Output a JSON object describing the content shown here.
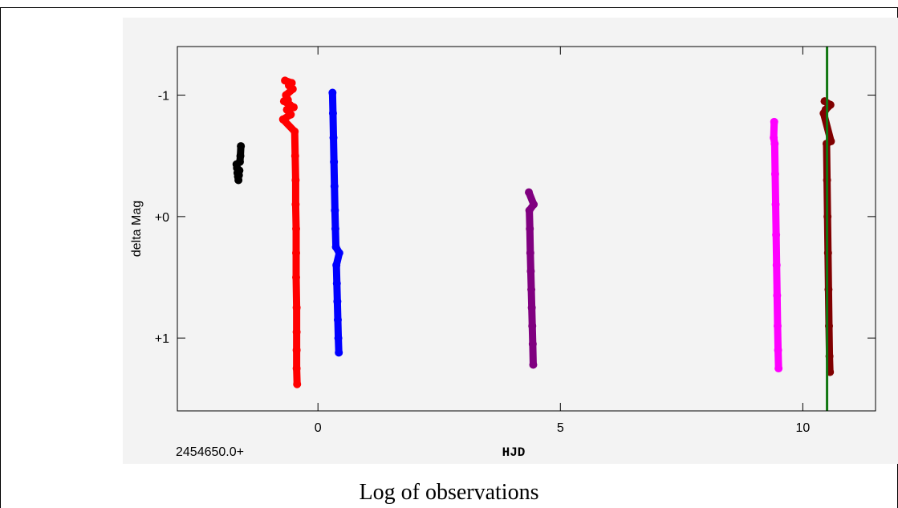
{
  "caption": "Log of observations",
  "chart_data": {
    "type": "scatter",
    "title": "",
    "xlabel": "HJD",
    "ylabel": "delta Mag",
    "x_offset_label": "2454650.0+",
    "xlim": [
      -2.9,
      11.5
    ],
    "ylim": [
      1.6,
      -1.4
    ],
    "x_ticks": [
      0,
      5,
      10
    ],
    "x_tick_labels": [
      "0",
      "5",
      "10"
    ],
    "y_ticks": [
      -1,
      0,
      1
    ],
    "y_tick_labels": [
      "-1",
      "+0",
      "+1"
    ],
    "grid": false,
    "legend": "none",
    "reference_line": {
      "x": 10.5,
      "color": "#117711"
    },
    "series": [
      {
        "color": "#000000",
        "x": [
          -1.68,
          -1.67,
          -1.66,
          -1.65,
          -1.64,
          -1.63,
          -1.62,
          -1.61,
          -1.6,
          -1.59
        ],
        "y": [
          -0.43,
          -0.4,
          -0.36,
          -0.33,
          -0.3,
          -0.34,
          -0.38,
          -0.45,
          -0.5,
          -0.58
        ]
      },
      {
        "color": "#ff0000",
        "x": [
          -0.72,
          -0.7,
          -0.68,
          -0.66,
          -0.64,
          -0.62,
          -0.6,
          -0.58,
          -0.56,
          -0.54,
          -0.52,
          -0.5,
          -0.48,
          -0.47,
          -0.46,
          -0.46,
          -0.45,
          -0.45,
          -0.45,
          -0.44,
          -0.44,
          -0.44,
          -0.44,
          -0.43
        ],
        "y": [
          -0.8,
          -0.95,
          -1.12,
          -1.0,
          -0.88,
          -0.96,
          -1.08,
          -0.92,
          -0.84,
          -1.1,
          -1.05,
          -0.9,
          -0.7,
          -0.5,
          -0.3,
          -0.1,
          0.1,
          0.3,
          0.5,
          0.75,
          0.95,
          1.1,
          1.25,
          1.38
        ]
      },
      {
        "color": "#0000ff",
        "x": [
          0.3,
          0.31,
          0.32,
          0.33,
          0.34,
          0.35,
          0.36,
          0.37,
          0.38,
          0.39,
          0.4,
          0.41,
          0.42,
          0.43,
          0.44
        ],
        "y": [
          -1.02,
          -0.85,
          -0.65,
          -0.45,
          -0.25,
          -0.05,
          0.1,
          0.25,
          0.4,
          0.55,
          0.7,
          0.85,
          1.0,
          1.12,
          0.3
        ]
      },
      {
        "color": "#800080",
        "x": [
          4.35,
          4.36,
          4.37,
          4.38,
          4.39,
          4.4,
          4.41,
          4.42,
          4.43,
          4.44,
          4.45
        ],
        "y": [
          -0.2,
          -0.05,
          0.1,
          0.3,
          0.45,
          0.6,
          0.75,
          0.9,
          1.05,
          1.22,
          -0.1
        ]
      },
      {
        "color": "#ff00ff",
        "x": [
          9.4,
          9.41,
          9.42,
          9.43,
          9.44,
          9.45,
          9.46,
          9.47,
          9.48,
          9.49,
          9.5
        ],
        "y": [
          -0.65,
          -0.78,
          -0.6,
          -0.35,
          -0.1,
          0.15,
          0.4,
          0.65,
          0.9,
          1.1,
          1.25
        ]
      },
      {
        "color": "#800000",
        "x": [
          10.43,
          10.45,
          10.47,
          10.49,
          10.5,
          10.51,
          10.52,
          10.53,
          10.54,
          10.55,
          10.56,
          10.57,
          10.58
        ],
        "y": [
          -0.85,
          -0.95,
          -0.88,
          -0.6,
          -0.3,
          0.0,
          0.3,
          0.6,
          0.9,
          1.15,
          1.28,
          -0.92,
          -0.62
        ]
      }
    ]
  }
}
